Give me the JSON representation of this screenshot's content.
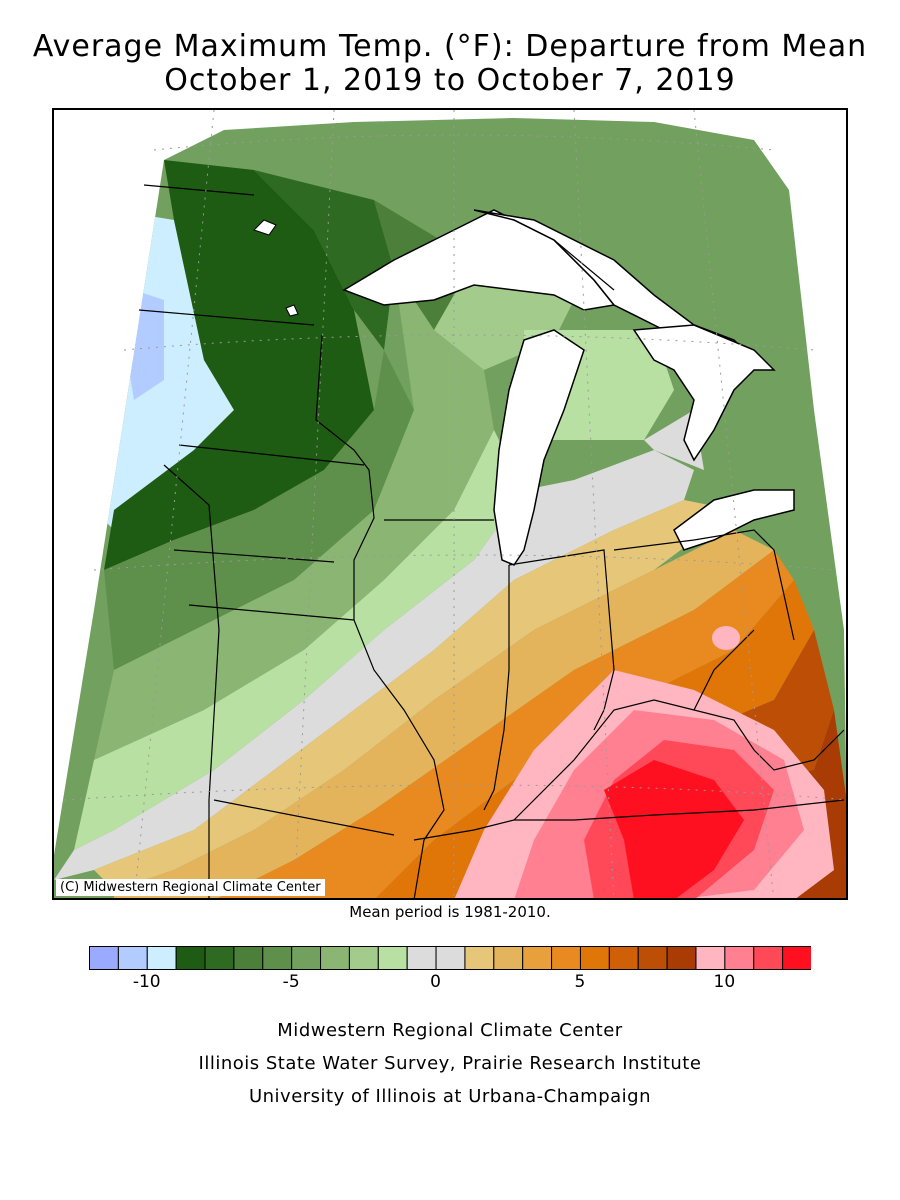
{
  "title": {
    "line1": "Average Maximum Temp. (°F): Departure from Mean",
    "line2": "October 1, 2019 to October 7, 2019"
  },
  "map": {
    "credit": "(C) Midwestern Regional Climate Center"
  },
  "mean_period": "Mean period is 1981-2010.",
  "legend": {
    "bins": [
      {
        "from": -12,
        "to": -11,
        "color": "#99aaff"
      },
      {
        "from": -11,
        "to": -10,
        "color": "#b3ccff"
      },
      {
        "from": -10,
        "to": -9,
        "color": "#cceeff"
      },
      {
        "from": -9,
        "to": -8,
        "color": "#1e5c14"
      },
      {
        "from": -8,
        "to": -7,
        "color": "#2f6a22"
      },
      {
        "from": -7,
        "to": -6,
        "color": "#4b7f3a"
      },
      {
        "from": -6,
        "to": -5,
        "color": "#5e8f4b"
      },
      {
        "from": -5,
        "to": -4,
        "color": "#72a05e"
      },
      {
        "from": -4,
        "to": -3,
        "color": "#8ab573"
      },
      {
        "from": -3,
        "to": -2,
        "color": "#a3cc8c"
      },
      {
        "from": -2,
        "to": -1,
        "color": "#b8e0a2"
      },
      {
        "from": -1,
        "to": 0,
        "color": "#dcdcdc"
      },
      {
        "from": 0,
        "to": 1,
        "color": "#dcdcdc"
      },
      {
        "from": 1,
        "to": 2,
        "color": "#e6c77a"
      },
      {
        "from": 2,
        "to": 3,
        "color": "#e4b45c"
      },
      {
        "from": 3,
        "to": 4,
        "color": "#e8a03c"
      },
      {
        "from": 4,
        "to": 5,
        "color": "#e88a20"
      },
      {
        "from": 5,
        "to": 6,
        "color": "#e07608"
      },
      {
        "from": 6,
        "to": 7,
        "color": "#d06008"
      },
      {
        "from": 7,
        "to": 8,
        "color": "#bc4e06"
      },
      {
        "from": 8,
        "to": 9,
        "color": "#a83c04"
      },
      {
        "from": 9,
        "to": 10,
        "color": "#ffb6c1"
      },
      {
        "from": 10,
        "to": 11,
        "color": "#ff8090"
      },
      {
        "from": 11,
        "to": 12,
        "color": "#ff4858"
      },
      {
        "from": 12,
        "to": 13,
        "color": "#ff1020"
      }
    ],
    "ticks": [
      "-10",
      "-5",
      "0",
      "5",
      "10"
    ],
    "tick_values": [
      -10,
      -5,
      0,
      5,
      10
    ],
    "range": [
      -12,
      13
    ]
  },
  "footer": {
    "line1": "Midwestern Regional Climate Center",
    "line2": "Illinois State Water Survey, Prairie Research Institute",
    "line3": "University of Illinois at Urbana-Champaign"
  }
}
